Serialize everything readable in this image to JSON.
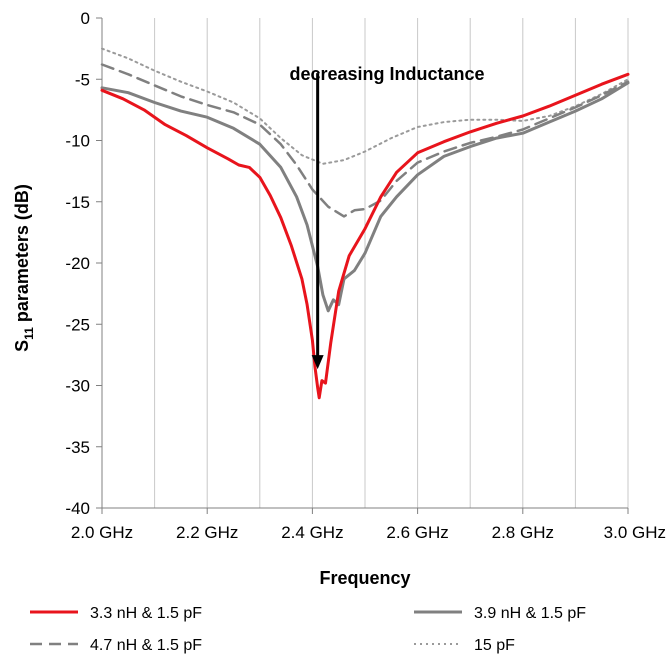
{
  "chart_data": {
    "type": "line",
    "xlabel": "Frequency",
    "ylabel_main": "S",
    "ylabel_sub": "11",
    "ylabel_rest": " parameters (dB)",
    "xlim": [
      2.0,
      3.0
    ],
    "ylim": [
      -40,
      0
    ],
    "xticks": [
      2.0,
      2.2,
      2.4,
      2.6,
      2.8,
      3.0
    ],
    "xtick_labels": [
      "2.0 GHz",
      "2.2 GHz",
      "2.4 GHz",
      "2.6 GHz",
      "2.8 GHz",
      "3.0 GHz"
    ],
    "yticks": [
      0,
      -5,
      -10,
      -15,
      -20,
      -25,
      -30,
      -35,
      -40
    ],
    "ytick_labels": [
      "0",
      "-5",
      "-10",
      "-15",
      "-20",
      "-25",
      "-30",
      "-35",
      "-40"
    ],
    "grid": true,
    "legend_position": "bottom",
    "annotation": {
      "text": "decreasing Inductance",
      "arrow_x": 2.41,
      "arrow_from_y": -4.5,
      "arrow_to_y": -28.5
    },
    "series": [
      {
        "name": "3.3 nH & 1.5 pF",
        "color": "#e8141c",
        "dash": "solid",
        "points": [
          [
            2.0,
            -5.9
          ],
          [
            2.04,
            -6.6
          ],
          [
            2.08,
            -7.5
          ],
          [
            2.12,
            -8.7
          ],
          [
            2.16,
            -9.6
          ],
          [
            2.2,
            -10.6
          ],
          [
            2.24,
            -11.5
          ],
          [
            2.26,
            -12.0
          ],
          [
            2.28,
            -12.2
          ],
          [
            2.3,
            -13.0
          ],
          [
            2.32,
            -14.5
          ],
          [
            2.34,
            -16.3
          ],
          [
            2.36,
            -18.6
          ],
          [
            2.38,
            -21.3
          ],
          [
            2.39,
            -23.4
          ],
          [
            2.4,
            -26.3
          ],
          [
            2.405,
            -28.5
          ],
          [
            2.41,
            -30.2
          ],
          [
            2.413,
            -31.0
          ],
          [
            2.418,
            -29.6
          ],
          [
            2.425,
            -29.8
          ],
          [
            2.435,
            -26.5
          ],
          [
            2.45,
            -22.3
          ],
          [
            2.47,
            -19.4
          ],
          [
            2.5,
            -17.2
          ],
          [
            2.53,
            -14.6
          ],
          [
            2.56,
            -12.6
          ],
          [
            2.6,
            -11.0
          ],
          [
            2.65,
            -10.1
          ],
          [
            2.7,
            -9.3
          ],
          [
            2.75,
            -8.6
          ],
          [
            2.8,
            -8.0
          ],
          [
            2.85,
            -7.2
          ],
          [
            2.9,
            -6.3
          ],
          [
            2.95,
            -5.4
          ],
          [
            3.0,
            -4.6
          ]
        ]
      },
      {
        "name": "3.9 nH & 1.5 pF",
        "color": "#808080",
        "dash": "solid",
        "points": [
          [
            2.0,
            -5.7
          ],
          [
            2.05,
            -6.1
          ],
          [
            2.1,
            -6.9
          ],
          [
            2.15,
            -7.6
          ],
          [
            2.2,
            -8.1
          ],
          [
            2.25,
            -9.0
          ],
          [
            2.3,
            -10.3
          ],
          [
            2.34,
            -12.2
          ],
          [
            2.37,
            -14.6
          ],
          [
            2.39,
            -16.9
          ],
          [
            2.41,
            -20.3
          ],
          [
            2.42,
            -22.6
          ],
          [
            2.43,
            -23.9
          ],
          [
            2.44,
            -23.0
          ],
          [
            2.45,
            -23.4
          ],
          [
            2.46,
            -21.3
          ],
          [
            2.48,
            -20.6
          ],
          [
            2.5,
            -19.2
          ],
          [
            2.53,
            -16.2
          ],
          [
            2.56,
            -14.6
          ],
          [
            2.6,
            -12.8
          ],
          [
            2.65,
            -11.3
          ],
          [
            2.7,
            -10.5
          ],
          [
            2.75,
            -9.8
          ],
          [
            2.8,
            -9.4
          ],
          [
            2.85,
            -8.5
          ],
          [
            2.9,
            -7.6
          ],
          [
            2.95,
            -6.6
          ],
          [
            3.0,
            -5.3
          ]
        ]
      },
      {
        "name": "4.7 nH & 1.5 pF",
        "color": "#808080",
        "dash": "dashed",
        "points": [
          [
            2.0,
            -3.8
          ],
          [
            2.05,
            -4.6
          ],
          [
            2.1,
            -5.5
          ],
          [
            2.15,
            -6.4
          ],
          [
            2.2,
            -7.1
          ],
          [
            2.25,
            -7.7
          ],
          [
            2.3,
            -8.7
          ],
          [
            2.34,
            -10.3
          ],
          [
            2.37,
            -12.0
          ],
          [
            2.4,
            -14.0
          ],
          [
            2.43,
            -15.4
          ],
          [
            2.46,
            -16.2
          ],
          [
            2.48,
            -15.7
          ],
          [
            2.5,
            -15.6
          ],
          [
            2.53,
            -14.9
          ],
          [
            2.56,
            -13.3
          ],
          [
            2.6,
            -11.8
          ],
          [
            2.65,
            -10.9
          ],
          [
            2.7,
            -10.2
          ],
          [
            2.75,
            -9.7
          ],
          [
            2.8,
            -9.1
          ],
          [
            2.85,
            -8.2
          ],
          [
            2.9,
            -7.3
          ],
          [
            2.95,
            -6.3
          ],
          [
            3.0,
            -5.2
          ]
        ]
      },
      {
        "name": "15 pF",
        "color": "#9a9a9a",
        "dash": "dotted",
        "points": [
          [
            2.0,
            -2.5
          ],
          [
            2.05,
            -3.3
          ],
          [
            2.1,
            -4.3
          ],
          [
            2.15,
            -5.2
          ],
          [
            2.2,
            -6.0
          ],
          [
            2.25,
            -6.9
          ],
          [
            2.3,
            -8.2
          ],
          [
            2.34,
            -9.8
          ],
          [
            2.38,
            -11.2
          ],
          [
            2.42,
            -11.9
          ],
          [
            2.46,
            -11.6
          ],
          [
            2.5,
            -10.9
          ],
          [
            2.55,
            -9.8
          ],
          [
            2.6,
            -8.9
          ],
          [
            2.65,
            -8.5
          ],
          [
            2.7,
            -8.3
          ],
          [
            2.75,
            -8.3
          ],
          [
            2.8,
            -8.4
          ],
          [
            2.85,
            -8.0
          ],
          [
            2.9,
            -7.2
          ],
          [
            2.95,
            -6.2
          ],
          [
            3.0,
            -5.0
          ]
        ]
      }
    ]
  }
}
